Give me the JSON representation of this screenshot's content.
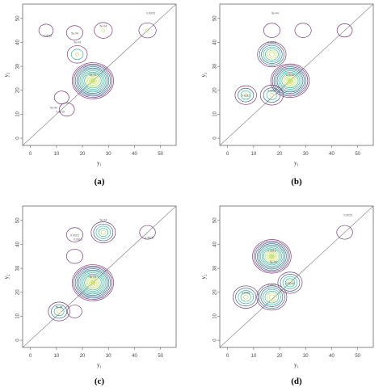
{
  "chart_data": [
    {
      "type": "contour",
      "panel": "a",
      "caption": "(a)",
      "xlabel": "y₁",
      "ylabel": "y₂",
      "xlim": [
        -3,
        56
      ],
      "ylim": [
        -3,
        56
      ],
      "xticks": [
        "0",
        "10",
        "20",
        "30",
        "40",
        "50"
      ],
      "yticks": [
        "0",
        "10",
        "20",
        "30",
        "40",
        "50"
      ],
      "reference_line": "y = x",
      "contour_labels": [
        "5e-04",
        "5e-04",
        "5e-04",
        "5e-04",
        "0.0015",
        "0.0035",
        "0.0015",
        "5e-04"
      ],
      "density_peaks": [
        {
          "x": 24,
          "y": 24,
          "level": 1.0
        },
        {
          "x": 18,
          "y": 35,
          "level": 0.25
        },
        {
          "x": 28,
          "y": 45,
          "level": 0.18
        },
        {
          "x": 17,
          "y": 44,
          "level": 0.12
        },
        {
          "x": 45,
          "y": 45,
          "level": 0.15
        },
        {
          "x": 6,
          "y": 45,
          "level": 0.05
        },
        {
          "x": 14,
          "y": 12,
          "level": 0.08
        },
        {
          "x": 12,
          "y": 17,
          "level": 0.06
        }
      ]
    },
    {
      "type": "contour",
      "panel": "b",
      "caption": "(b)",
      "xlabel": "y₁",
      "ylabel": "y₂",
      "xlim": [
        -3,
        56
      ],
      "ylim": [
        -3,
        56
      ],
      "xticks": [
        "0",
        "10",
        "20",
        "30",
        "40",
        "50"
      ],
      "yticks": [
        "0",
        "10",
        "20",
        "30",
        "40",
        "50"
      ],
      "reference_line": "y = x",
      "contour_labels": [
        "0.0015",
        "0.0015",
        "0.0015",
        "0.0015",
        "5e-04"
      ],
      "density_peaks": [
        {
          "x": 24,
          "y": 24,
          "level": 0.9
        },
        {
          "x": 17,
          "y": 35,
          "level": 0.55
        },
        {
          "x": 17,
          "y": 18,
          "level": 0.35
        },
        {
          "x": 7,
          "y": 18,
          "level": 0.3
        },
        {
          "x": 17,
          "y": 45,
          "level": 0.12
        },
        {
          "x": 29,
          "y": 45,
          "level": 0.12
        },
        {
          "x": 45,
          "y": 45,
          "level": 0.08
        }
      ]
    },
    {
      "type": "contour",
      "panel": "c",
      "caption": "(c)",
      "xlabel": "y₁",
      "ylabel": "y₂",
      "xlim": [
        -3,
        56
      ],
      "ylim": [
        -3,
        56
      ],
      "xticks": [
        "0",
        "10",
        "20",
        "30",
        "40",
        "50"
      ],
      "yticks": [
        "0",
        "10",
        "20",
        "30",
        "40",
        "50"
      ],
      "reference_line": "y = x",
      "contour_labels": [
        "5e-04",
        "5e-04",
        "5e-04",
        "0.0015",
        "0.0015",
        "0.0015"
      ],
      "density_peaks": [
        {
          "x": 24,
          "y": 24,
          "level": 1.0
        },
        {
          "x": 28,
          "y": 45,
          "level": 0.4
        },
        {
          "x": 11,
          "y": 12,
          "level": 0.3
        },
        {
          "x": 17,
          "y": 44,
          "level": 0.12
        },
        {
          "x": 17,
          "y": 35,
          "level": 0.12
        },
        {
          "x": 45,
          "y": 45,
          "level": 0.1
        },
        {
          "x": 17,
          "y": 12,
          "level": 0.06
        }
      ]
    },
    {
      "type": "contour",
      "panel": "d",
      "caption": "(d)",
      "xlabel": "y₁",
      "ylabel": "y₂",
      "xlim": [
        -3,
        56
      ],
      "ylim": [
        -3,
        56
      ],
      "xticks": [
        "0",
        "10",
        "20",
        "30",
        "40",
        "50"
      ],
      "yticks": [
        "0",
        "10",
        "20",
        "30",
        "40",
        "50"
      ],
      "reference_line": "y = x",
      "contour_labels": [
        "0.0015",
        "0.0015",
        "0.0015",
        "0.0015",
        "0.0015",
        "5e-04"
      ],
      "density_peaks": [
        {
          "x": 17,
          "y": 35,
          "level": 0.9
        },
        {
          "x": 17,
          "y": 18,
          "level": 0.6
        },
        {
          "x": 7,
          "y": 18,
          "level": 0.45
        },
        {
          "x": 24,
          "y": 24,
          "level": 0.4
        },
        {
          "x": 45,
          "y": 45,
          "level": 0.1
        }
      ]
    }
  ],
  "colors": {
    "outer": "#7a3b7a",
    "mid": "#3a6f8f",
    "inner": "#3fb6a0",
    "core": "#c8e06a",
    "diag": "#777777"
  }
}
